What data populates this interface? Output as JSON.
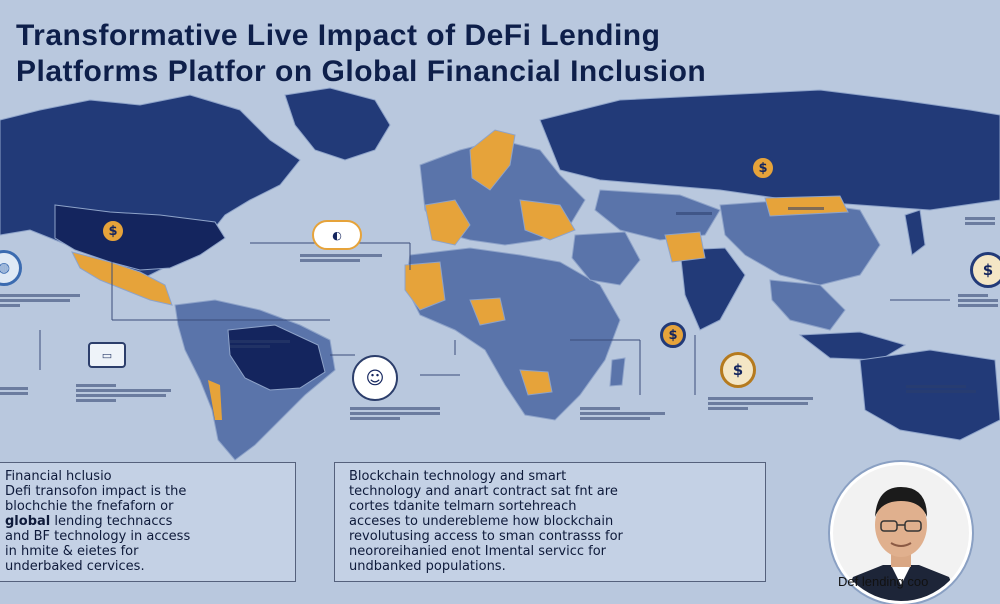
{
  "title": {
    "line1": "Transformative Live Impact of DeFi Lending",
    "line2": "Platforms Platfor   on Global Financial Inclusion"
  },
  "box_left": {
    "heading": "Financial hclusio",
    "line1": "Defi transofon impact is the",
    "line2": "blochchie the fnefaforn or",
    "line3_bold": "global",
    "line3_rest": " lending technaccs",
    "line4": "and BF technology in access",
    "line5": "in hmite & eietes for",
    "line6": "underbaked cervices."
  },
  "box_right": {
    "line1": "Blockchain technology and smart",
    "line2": "technology and anart contract sat fnt are",
    "line3": "cortes tdanite telmarn sortehreach",
    "line4": "acceses to underebleme how blockchain",
    "line5": "revolutusing access to sman contrasss for",
    "line6": "neororeihanied enot Imental servicc for",
    "line7": "undbanked populations."
  },
  "caption": "Def lending coo",
  "coin_symbol": "$",
  "colors": {
    "background": "#b9c8de",
    "land_dark": "#223a78",
    "land_mid": "#5a74aa",
    "land_navy": "#14255e",
    "land_orange": "#e6a33a",
    "title": "#0e1f4a"
  }
}
